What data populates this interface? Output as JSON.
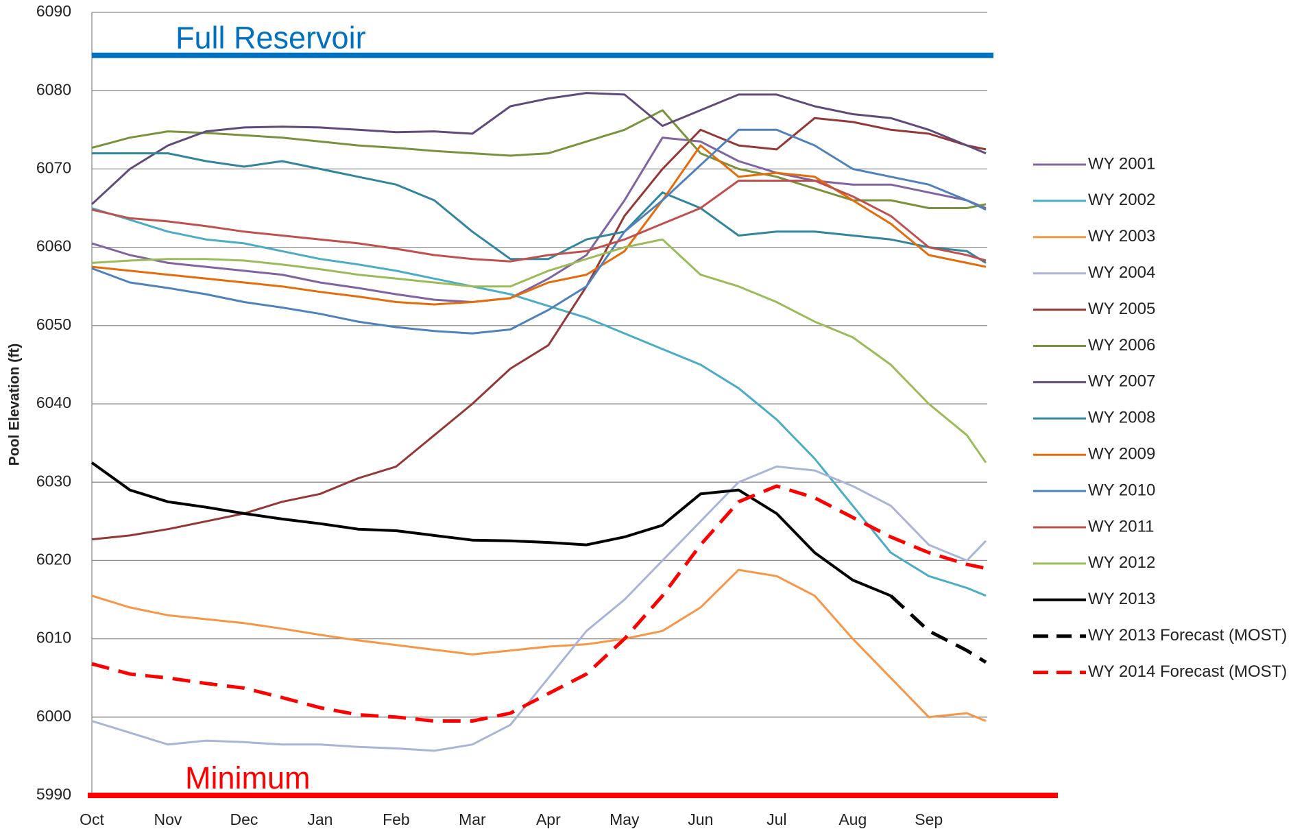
{
  "chart_data": {
    "type": "line",
    "y_label": "Pool Elevation (ft)",
    "x": [
      0,
      0.5,
      1,
      1.5,
      2,
      2.5,
      3,
      3.5,
      4,
      4.5,
      5,
      5.5,
      6,
      6.5,
      7,
      7.5,
      8,
      8.5,
      9,
      9.5,
      10,
      10.5,
      11,
      11.5,
      11.75
    ],
    "xlim": [
      0,
      11.75
    ],
    "xticks": [
      {
        "value": 0,
        "label": "Oct"
      },
      {
        "value": 1,
        "label": "Nov"
      },
      {
        "value": 2,
        "label": "Dec"
      },
      {
        "value": 3,
        "label": "Jan"
      },
      {
        "value": 4,
        "label": "Feb"
      },
      {
        "value": 5,
        "label": "Mar"
      },
      {
        "value": 6,
        "label": "Apr"
      },
      {
        "value": 7,
        "label": "May"
      },
      {
        "value": 8,
        "label": "Jun"
      },
      {
        "value": 9,
        "label": "Jul"
      },
      {
        "value": 10,
        "label": "Aug"
      },
      {
        "value": 11,
        "label": "Sep"
      }
    ],
    "ylim": [
      5990,
      6090
    ],
    "yticks": [
      5990,
      6000,
      6010,
      6020,
      6030,
      6040,
      6050,
      6060,
      6070,
      6080,
      6090
    ],
    "grid": true,
    "legend": "right",
    "reference_lines": [
      {
        "label": "Full Reservoir",
        "value": 6084.5,
        "color": "#0070c0"
      },
      {
        "label": "Minimum",
        "value": 5990,
        "color": "#ff0000"
      }
    ],
    "series": [
      {
        "name": "WY 2001",
        "color": "#8064a2",
        "values": [
          6060.5,
          6059,
          6058,
          6057.5,
          6057,
          6056.5,
          6055.5,
          6054.8,
          6054,
          6053.3,
          6053,
          6053.5,
          6056,
          6059,
          6066,
          6074,
          6073.5,
          6071,
          6069.5,
          6068.5,
          6068,
          6068,
          6067,
          6066,
          6065
        ]
      },
      {
        "name": "WY 2002",
        "color": "#4bacc6",
        "values": [
          6065,
          6063.5,
          6062,
          6061,
          6060.5,
          6059.5,
          6058.5,
          6057.8,
          6057,
          6056,
          6055,
          6054,
          6052.5,
          6051,
          6049,
          6047,
          6045,
          6042,
          6038,
          6033,
          6027,
          6021,
          6018,
          6016.5,
          6015.5
        ]
      },
      {
        "name": "WY 2003",
        "color": "#f79646",
        "values": [
          6015.5,
          6014,
          6013,
          6012.5,
          6012,
          6011.3,
          6010.5,
          6009.8,
          6009.2,
          6008.6,
          6008,
          6008.5,
          6009,
          6009.3,
          6010,
          6011,
          6014,
          6018.8,
          6018,
          6015.5,
          6010,
          6005,
          6000,
          6000.5,
          5999.5
        ]
      },
      {
        "name": "WY 2004",
        "color": "#a9b4d9",
        "values": [
          5999.5,
          5998,
          5996.5,
          5997,
          5996.8,
          5996.5,
          5996.5,
          5996.2,
          5996,
          5995.7,
          5996.5,
          5999,
          6005,
          6011,
          6015,
          6020,
          6025,
          6030,
          6032,
          6031.5,
          6029.5,
          6027,
          6022,
          6020,
          6022.5
        ]
      },
      {
        "name": "WY 2005",
        "color": "#953735",
        "values": [
          6022.7,
          6023.2,
          6024,
          6025,
          6026,
          6027.5,
          6028.5,
          6030.5,
          6032,
          6036,
          6040,
          6044.5,
          6047.5,
          6055,
          6064,
          6070,
          6075,
          6073,
          6072.5,
          6076.5,
          6076,
          6075,
          6074.5,
          6073,
          6072.5
        ]
      },
      {
        "name": "WY 2006",
        "color": "#77933c",
        "values": [
          6072.7,
          6074,
          6074.8,
          6074.6,
          6074.3,
          6074,
          6073.5,
          6073,
          6072.7,
          6072.3,
          6072,
          6071.7,
          6072,
          6073.5,
          6075,
          6077.5,
          6072,
          6070,
          6069,
          6067.5,
          6066,
          6066,
          6065,
          6065,
          6065.5
        ]
      },
      {
        "name": "WY 2007",
        "color": "#604a7b",
        "values": [
          6065.5,
          6070,
          6073,
          6074.8,
          6075.3,
          6075.4,
          6075.3,
          6075,
          6074.7,
          6074.8,
          6074.5,
          6078,
          6079,
          6079.7,
          6079.5,
          6075.5,
          6077.5,
          6079.5,
          6079.5,
          6078,
          6077,
          6076.5,
          6075,
          6073,
          6072
        ]
      },
      {
        "name": "WY 2008",
        "color": "#31859c",
        "values": [
          6072,
          6072,
          6072,
          6071,
          6070.3,
          6071,
          6070,
          6069,
          6068,
          6066,
          6062,
          6058.5,
          6058.5,
          6061,
          6062,
          6067,
          6065,
          6061.5,
          6062,
          6062,
          6061.5,
          6061,
          6060,
          6059.5,
          6058
        ]
      },
      {
        "name": "WY 2009",
        "color": "#e46c0a",
        "values": [
          6057.5,
          6057,
          6056.5,
          6056,
          6055.5,
          6055,
          6054.3,
          6053.7,
          6053,
          6052.7,
          6053,
          6053.5,
          6055.5,
          6056.5,
          6059.5,
          6066,
          6073,
          6069,
          6069.5,
          6069,
          6066,
          6063,
          6059,
          6058,
          6057.5
        ]
      },
      {
        "name": "WY 2010",
        "color": "#4f81bd",
        "values": [
          6057.3,
          6055.5,
          6054.8,
          6054,
          6053,
          6052.3,
          6051.5,
          6050.5,
          6049.8,
          6049.3,
          6049,
          6049.5,
          6052,
          6055,
          6062,
          6066,
          6070.5,
          6075,
          6075,
          6073,
          6070,
          6069,
          6068,
          6066,
          6064.8
        ]
      },
      {
        "name": "WY 2011",
        "color": "#c0504d",
        "values": [
          6064.8,
          6063.7,
          6063.3,
          6062.7,
          6062,
          6061.5,
          6061,
          6060.5,
          6059.8,
          6059,
          6058.5,
          6058.2,
          6059,
          6059.5,
          6061,
          6063,
          6065,
          6068.5,
          6068.5,
          6068.5,
          6066.5,
          6064,
          6060,
          6059,
          6058.3
        ]
      },
      {
        "name": "WY 2012",
        "color": "#9bbb59",
        "values": [
          6058,
          6058.3,
          6058.5,
          6058.5,
          6058.3,
          6057.8,
          6057.2,
          6056.5,
          6056,
          6055.5,
          6055,
          6055,
          6057,
          6058.5,
          6060,
          6061,
          6056.5,
          6055,
          6053,
          6050.5,
          6048.5,
          6045,
          6040,
          6036,
          6032.5
        ]
      },
      {
        "name": "WY 2013",
        "color": "#000000",
        "linewidth": 4,
        "values": [
          6032.5,
          6029,
          6027.5,
          6026.8,
          6026,
          6025.3,
          6024.7,
          6024,
          6023.8,
          6023.2,
          6022.6,
          6022.5,
          6022.3,
          6022,
          6023,
          6024.5,
          6028.5,
          6029,
          6026,
          6021,
          6017.5,
          6015.5,
          null,
          null,
          null
        ]
      },
      {
        "name": "WY 2013 Forecast (MOST)",
        "color": "#000000",
        "linewidth": 5,
        "line_style": "dashed",
        "values": [
          null,
          null,
          null,
          null,
          null,
          null,
          null,
          null,
          null,
          null,
          null,
          null,
          null,
          null,
          null,
          null,
          null,
          null,
          null,
          null,
          null,
          6015.5,
          6011,
          6008.5,
          6007
        ]
      },
      {
        "name": "WY 2014 Forecast (MOST)",
        "color": "#ff0000",
        "linewidth": 5,
        "line_style": "dashed",
        "values": [
          6006.8,
          6005.5,
          6005,
          6004.3,
          6003.7,
          6002.5,
          6001.2,
          6000.3,
          6000,
          5999.5,
          5999.5,
          6000.5,
          6003,
          6005.5,
          6010,
          6015.5,
          6022,
          6027.5,
          6029.5,
          6028,
          6025.5,
          6023,
          6021,
          6019.5,
          6019
        ]
      }
    ]
  }
}
